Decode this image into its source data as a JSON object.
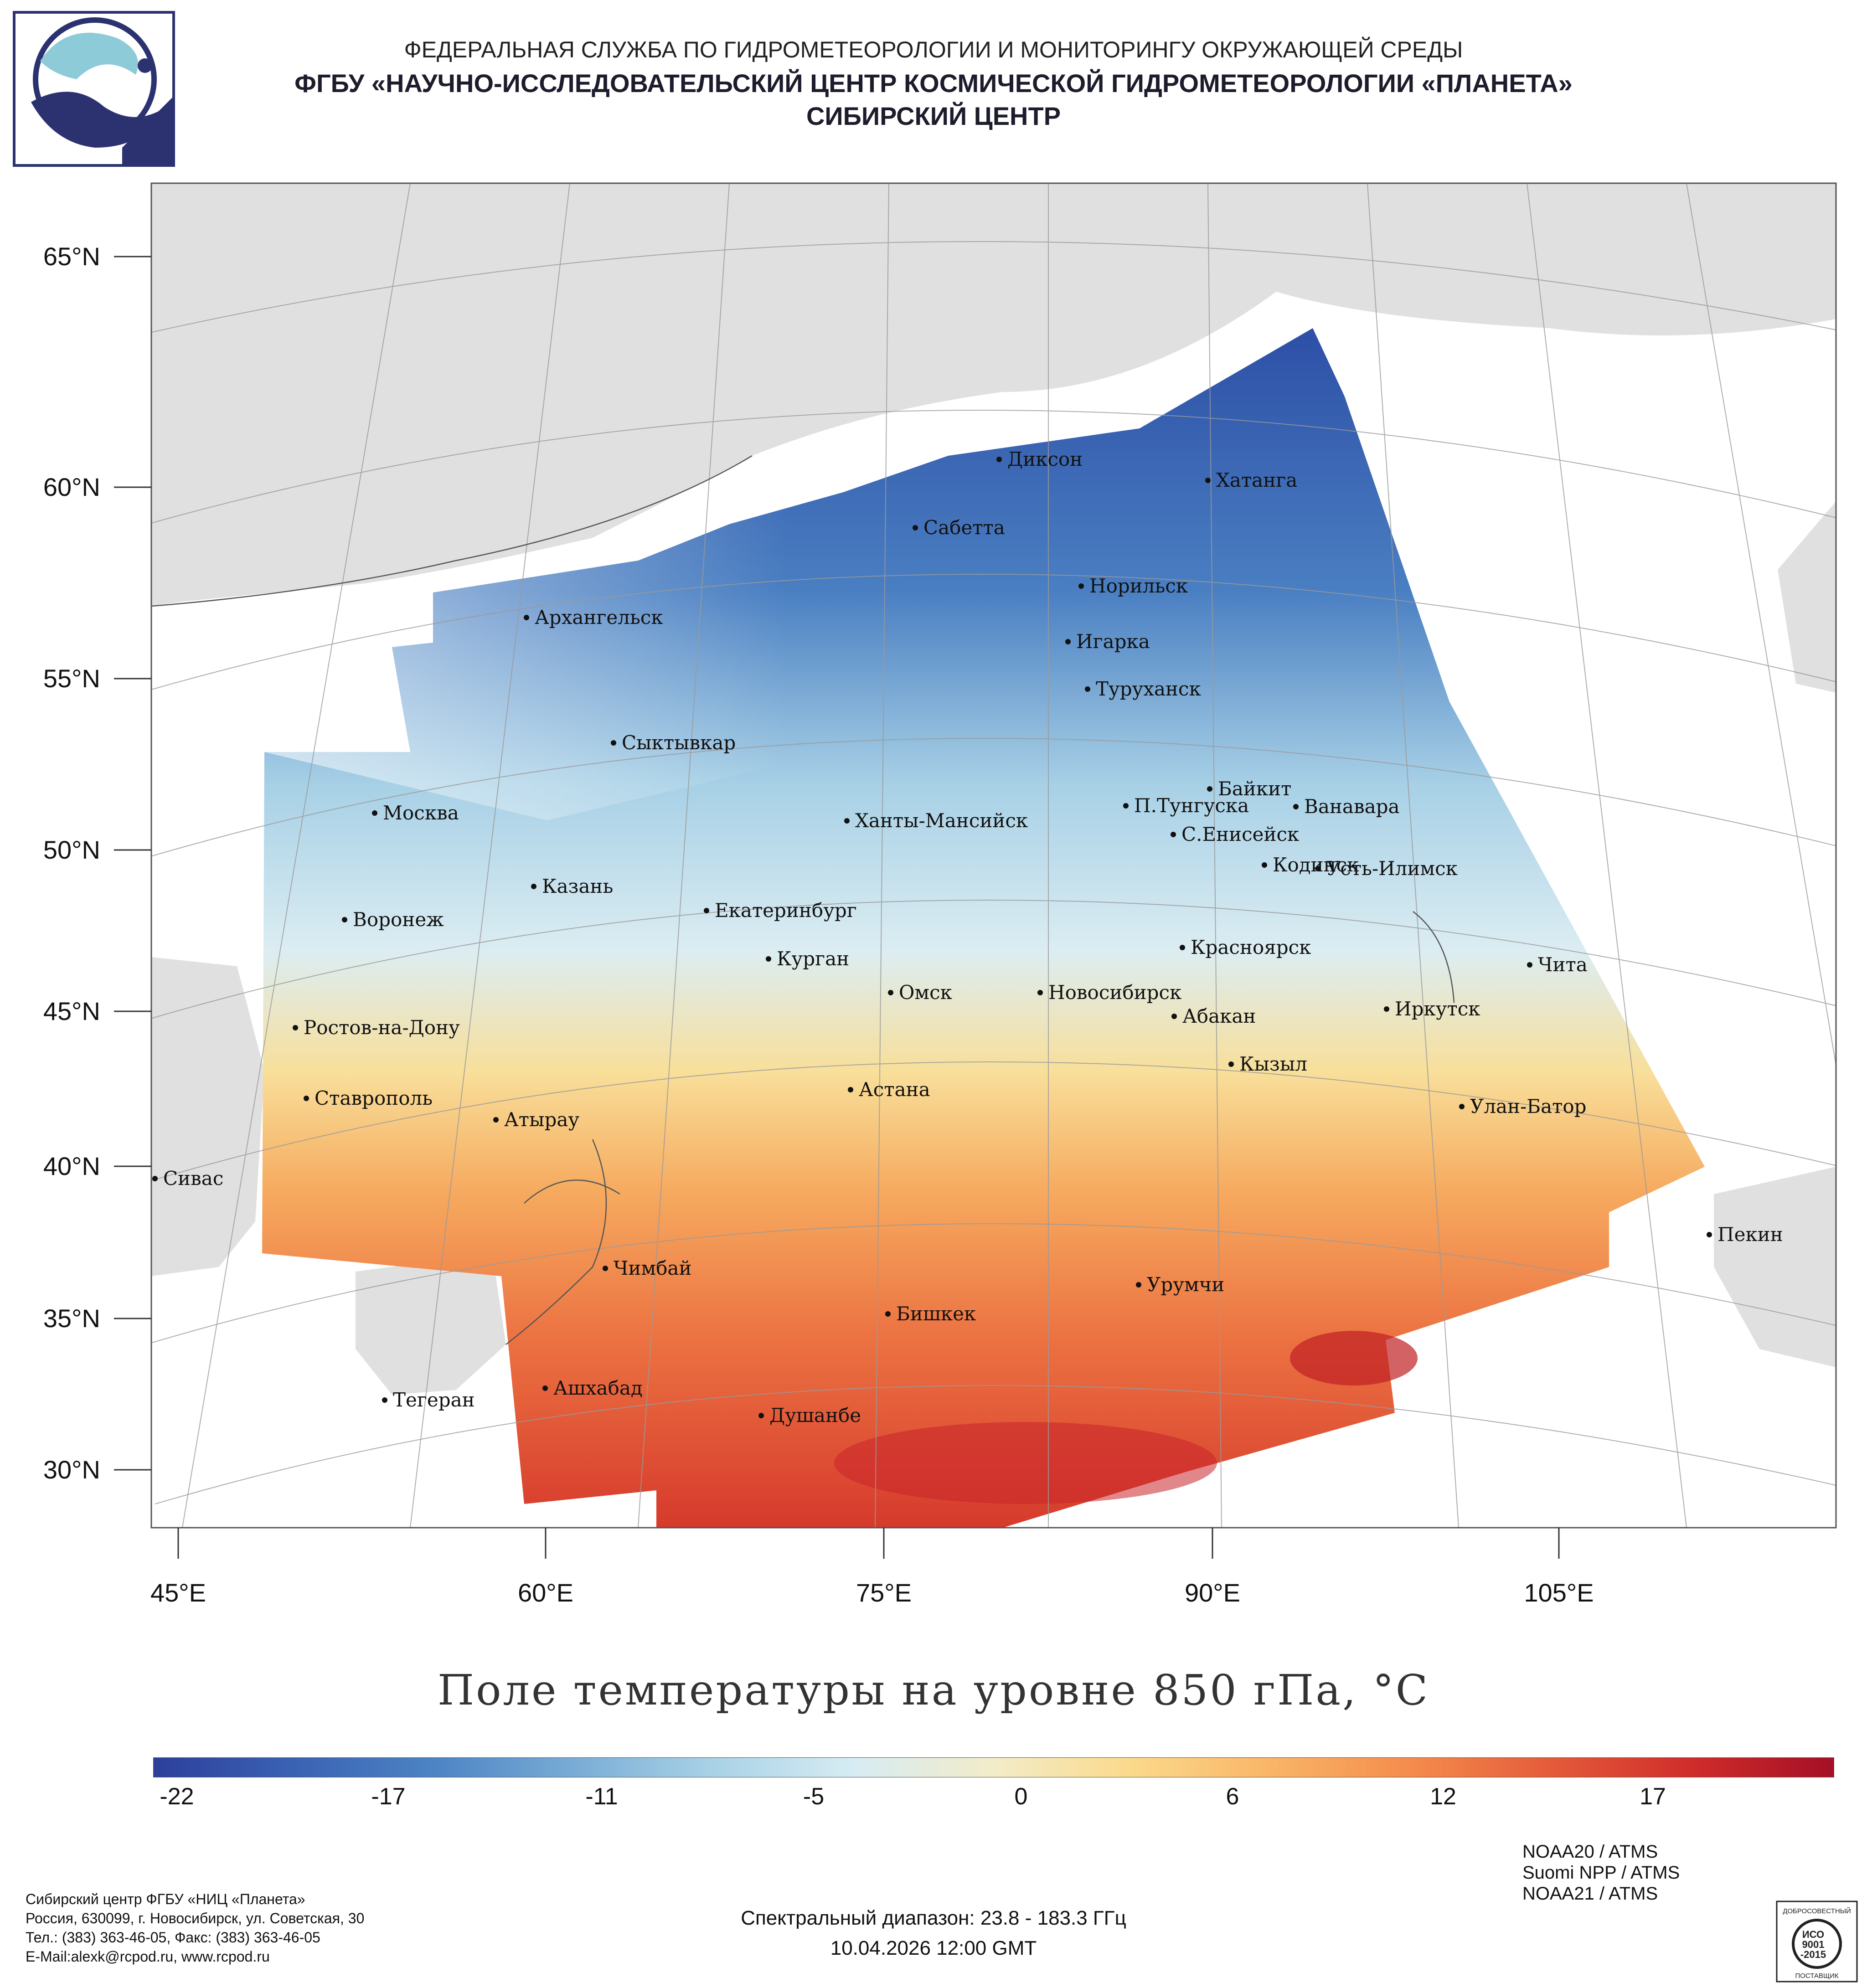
{
  "header": {
    "line1": "ФЕДЕРАЛЬНАЯ СЛУЖБА ПО ГИДРОМЕТЕОРОЛОГИИ И МОНИТОРИНГУ ОКРУЖАЮЩЕЙ СРЕДЫ",
    "line2": "ФГБУ «НАУЧНО-ИССЛЕДОВАТЕЛЬСКИЙ ЦЕНТР КОСМИЧЕСКОЙ ГИДРОМЕТЕОРОЛОГИИ «ПЛАНЕТА»",
    "line3": "СИБИРСКИЙ ЦЕНТР"
  },
  "map": {
    "title": "Поле температуры на уровне 850 гПа, °C",
    "lat_labels": [
      "65°N",
      "60°N",
      "55°N",
      "50°N",
      "45°N",
      "40°N",
      "35°N",
      "30°N"
    ],
    "lon_labels": [
      "45°E",
      "60°E",
      "75°E",
      "90°E",
      "105°E"
    ],
    "cities": [
      "Диксон",
      "Хатанга",
      "Сабетта",
      "Норильск",
      "Архангельск",
      "Игарка",
      "Туруханск",
      "Сыктывкар",
      "Байкит",
      "Москва",
      "Ханты-Мансийск",
      "П.Тунгуска",
      "Ванавара",
      "С.Енисейск",
      "Кодинск",
      "Усть-Илимск",
      "Казань",
      "Екатеринбург",
      "Воронеж",
      "Красноярск",
      "Курган",
      "Чита",
      "Омск",
      "Новосибирск",
      "Иркутск",
      "Абакан",
      "Ростов-на-Дону",
      "Кызыл",
      "Ставрополь",
      "Астана",
      "Улан-Батор",
      "Атырау",
      "Сивас",
      "Пекин",
      "Чимбай",
      "Урумчи",
      "Бишкек",
      "Ашхабад",
      "Тегеран",
      "Душанбе"
    ]
  },
  "colorbar": {
    "ticks": [
      "-22",
      "-17",
      "-11",
      "-5",
      "0",
      "6",
      "12",
      "17"
    ],
    "colors": [
      "#2c3f9b",
      "#3a62b3",
      "#4c84c4",
      "#79acd5",
      "#a9d2e6",
      "#d7ecf3",
      "#f2ecc9",
      "#fbd98b",
      "#f9b466",
      "#f48b4c",
      "#e45a3a",
      "#cf2c2a",
      "#a50f26"
    ]
  },
  "footer": {
    "org_line1": "Сибирский центр ФГБУ «НИЦ «Планета»",
    "org_line2": "Россия, 630099, г. Новосибирск, ул. Советская, 30",
    "org_line3": "Тел.: (383) 363-46-05, Факс: (383) 363-46-05",
    "org_line4": "E-Mail:alexk@rcpod.ru, www.rcpod.ru",
    "spectral": "Спектральный диапазон: 23.8 - 183.3 ГГц",
    "datetime": "10.04.2026 12:00 GMT",
    "sat1": "NOAA20 / ATMS",
    "sat2": "Suomi NPP / ATMS",
    "sat3": "NOAA21 / ATMS",
    "iso_top": "ДОБРОСОВЕСТНЫЙ",
    "iso_mid1": "ИСО",
    "iso_mid2": "9001",
    "iso_mid3": "-2015",
    "iso_bottom": "ПОСТАВЩИК"
  }
}
